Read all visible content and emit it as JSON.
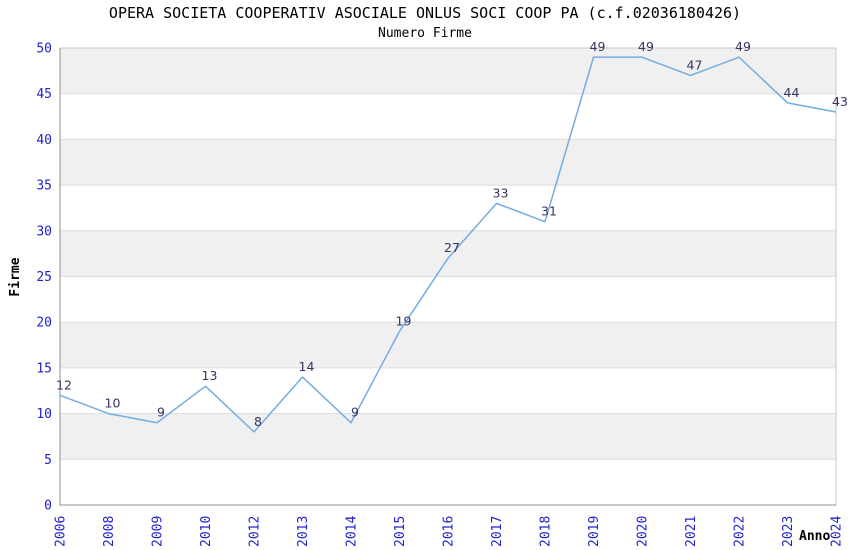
{
  "chart_data": {
    "type": "line",
    "title": "OPERA SOCIETA COOPERATIV ASOCIALE ONLUS SOCI COOP PA (c.f.02036180426)",
    "subtitle": "Numero Firme",
    "xlabel": "Anno",
    "ylabel": "Firme",
    "series_name": "Numero Firme",
    "categories": [
      "2006",
      "2008",
      "2009",
      "2010",
      "2012",
      "2013",
      "2014",
      "2015",
      "2016",
      "2017",
      "2018",
      "2019",
      "2020",
      "2021",
      "2022",
      "2023",
      "2024"
    ],
    "values": [
      12,
      10,
      9,
      13,
      8,
      14,
      9,
      19,
      27,
      33,
      31,
      49,
      49,
      47,
      49,
      44,
      43
    ],
    "ylim": [
      0,
      50
    ],
    "yticks": [
      0,
      5,
      10,
      15,
      20,
      25,
      30,
      35,
      40,
      45,
      50
    ],
    "legend": "none",
    "grid": "horizontal",
    "background_bands": "alternating gray/white between y gridlines, gray topmost",
    "x_tick_rotation": -90,
    "point_labels_shown": true,
    "colors": {
      "line": "#74ACE0",
      "tick_label": "#2222CC",
      "point_label": "#333366",
      "band_gray": "#F0F0F0",
      "band_white": "#FFFFFF",
      "grid_line": "#DCDCDC",
      "axis_line": "#909090",
      "border_line": "#C8C8C8",
      "title_text": "#000000"
    }
  }
}
